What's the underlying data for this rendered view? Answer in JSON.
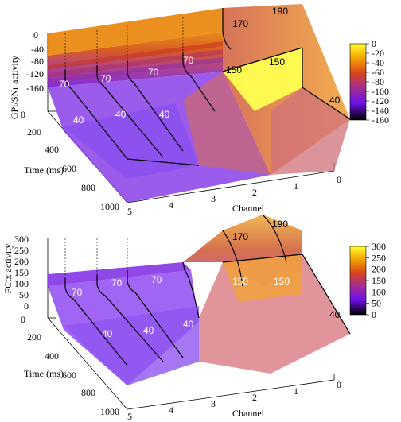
{
  "chart_data": [
    {
      "type": "surface",
      "zlabel": "GPi/SNr activity",
      "xlabel": "Channel",
      "ylabel": "Time (ms)",
      "zlim": [
        -160,
        0
      ],
      "z_ticks": [
        "0",
        "-40",
        "-80",
        "-120",
        "-160"
      ],
      "x_ticks": [
        "5",
        "4",
        "3",
        "2",
        "1",
        "0"
      ],
      "y_ticks": [
        "0",
        "200",
        "400",
        "600",
        "800",
        "1000"
      ],
      "colorbar_ticks": [
        "0",
        "-20",
        "-40",
        "-60",
        "-80",
        "-100",
        "-120",
        "-140",
        "-160"
      ],
      "colorbar_range": [
        -160,
        0
      ],
      "channels": [
        5,
        4,
        3,
        2,
        1,
        0
      ],
      "time_ms": [
        0,
        200,
        400,
        600,
        800,
        1000
      ],
      "annotations": [
        "70",
        "70",
        "70",
        "70",
        "40",
        "40",
        "40",
        "170",
        "190",
        "150",
        "150",
        "40"
      ]
    },
    {
      "type": "surface",
      "zlabel": "FCtx activity",
      "xlabel": "Channel",
      "ylabel": "Time (ms)",
      "zlim": [
        0,
        300
      ],
      "z_ticks": [
        "300",
        "250",
        "200",
        "150",
        "100",
        "50",
        "0"
      ],
      "x_ticks": [
        "5",
        "4",
        "3",
        "2",
        "1",
        "0"
      ],
      "y_ticks": [
        "0",
        "200",
        "400",
        "600",
        "800",
        "1000"
      ],
      "colorbar_ticks": [
        "300",
        "250",
        "200",
        "150",
        "100",
        "50",
        "0"
      ],
      "colorbar_range": [
        0,
        300
      ],
      "channels": [
        5,
        4,
        3,
        2,
        1,
        0
      ],
      "time_ms": [
        0,
        200,
        400,
        600,
        800,
        1000
      ],
      "annotations": [
        "70",
        "70",
        "70",
        "40",
        "40",
        "40",
        "170",
        "190",
        "150",
        "150",
        "40"
      ]
    }
  ]
}
